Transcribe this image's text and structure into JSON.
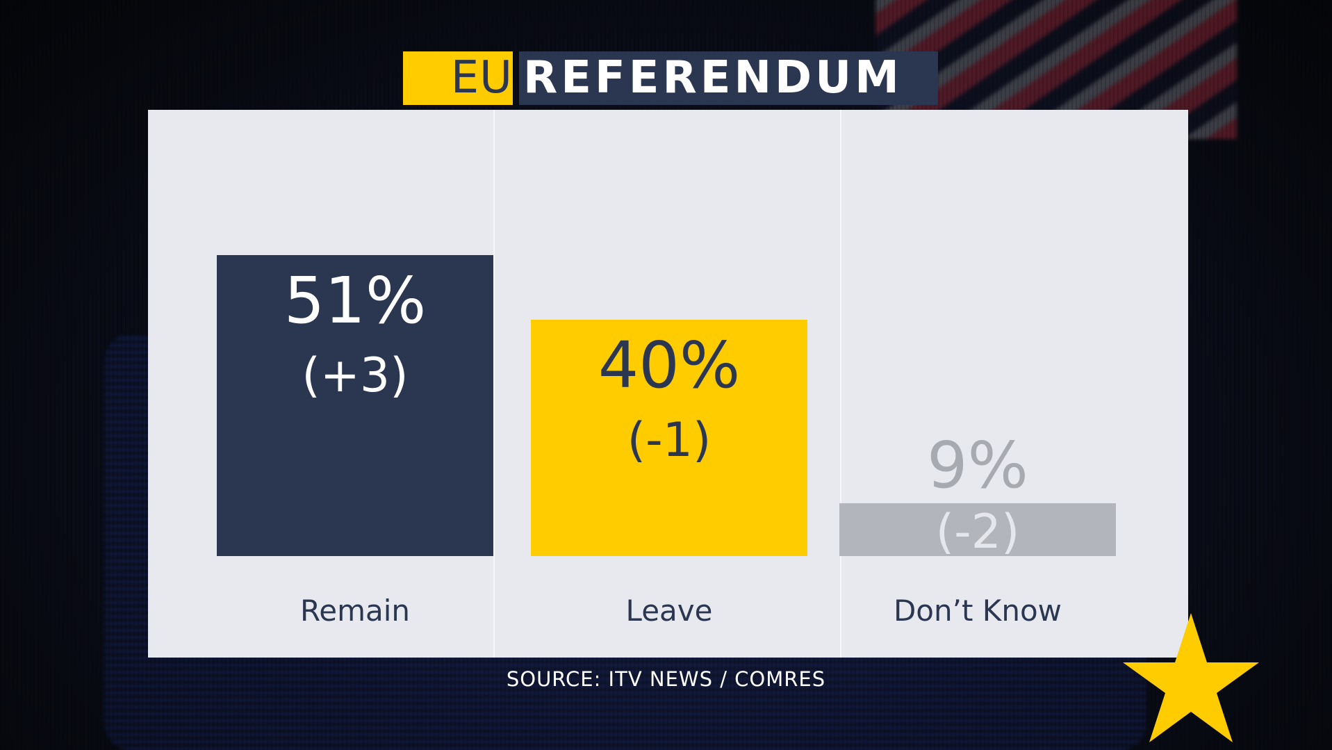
{
  "header": {
    "title_part1": "EU",
    "title_part2": "REFERENDUM"
  },
  "colors": {
    "remain": "#2b3750",
    "leave": "#ffcc00",
    "dont_know": "#b2b5bc",
    "accent": "#ffcc00",
    "navy": "#2b3750"
  },
  "chart_data": {
    "type": "bar",
    "title": "EU REFERENDUM",
    "xlabel": "",
    "ylabel": "",
    "ylim": [
      0,
      100
    ],
    "grid": false,
    "categories": [
      "Remain",
      "Leave",
      "Don’t Know"
    ],
    "values": [
      51,
      40,
      9
    ],
    "value_labels": [
      "51%",
      "40%",
      "9%"
    ],
    "change_labels": [
      "(+3)",
      "(-1)",
      "(-2)"
    ]
  },
  "footer": {
    "source": "SOURCE: ITV NEWS / COMRES"
  },
  "decor": {
    "corner_icon": "star-icon"
  }
}
